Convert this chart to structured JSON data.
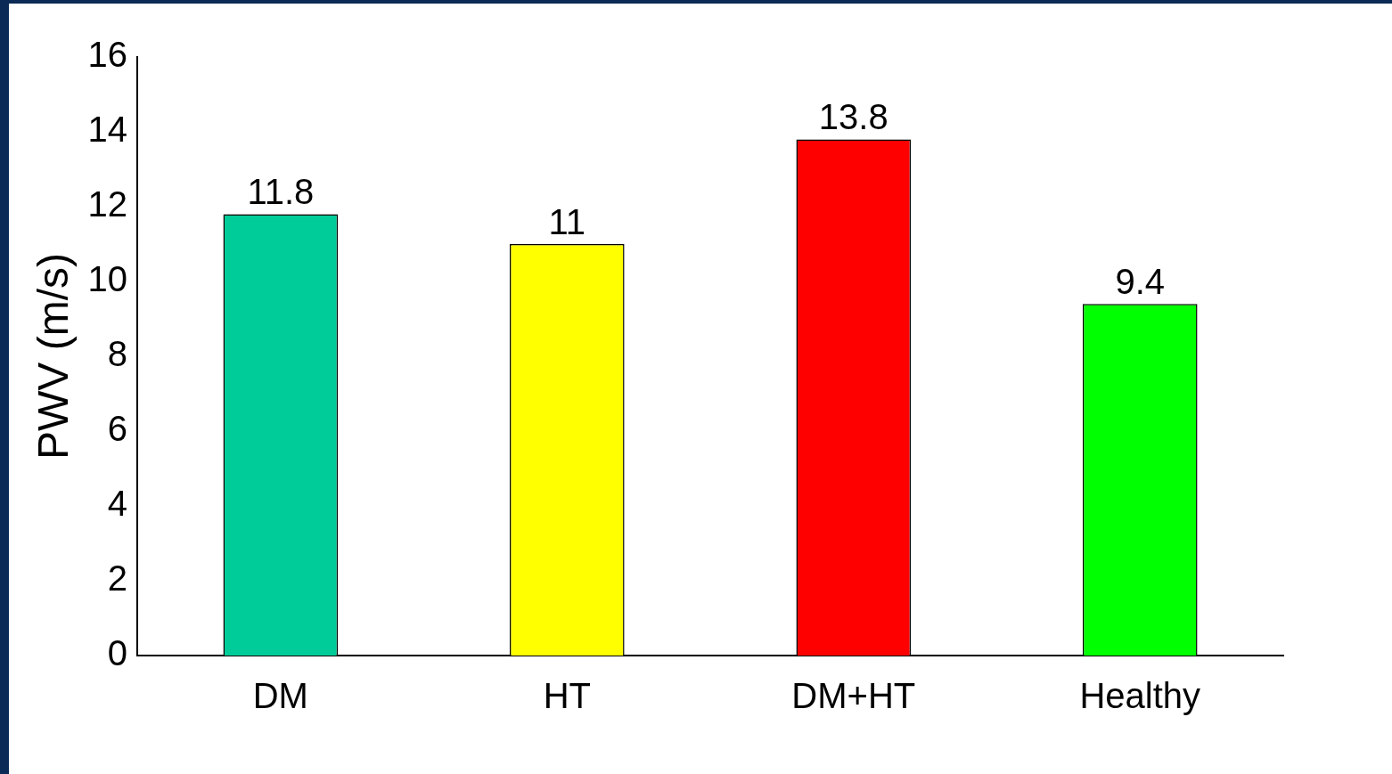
{
  "chart_data": {
    "type": "bar",
    "ylabel": "PWV (m/s)",
    "categories": [
      "DM",
      "HT",
      "DM+HT",
      "Healthy"
    ],
    "values": [
      11.8,
      11,
      13.8,
      9.4
    ],
    "colors": [
      "#00cc99",
      "#ffff00",
      "#ff0000",
      "#00ff00"
    ],
    "ylim": [
      0,
      16
    ],
    "yticks": [
      0,
      2,
      4,
      6,
      8,
      10,
      12,
      14,
      16
    ],
    "data_labels": true,
    "grid": false,
    "legend": false
  }
}
